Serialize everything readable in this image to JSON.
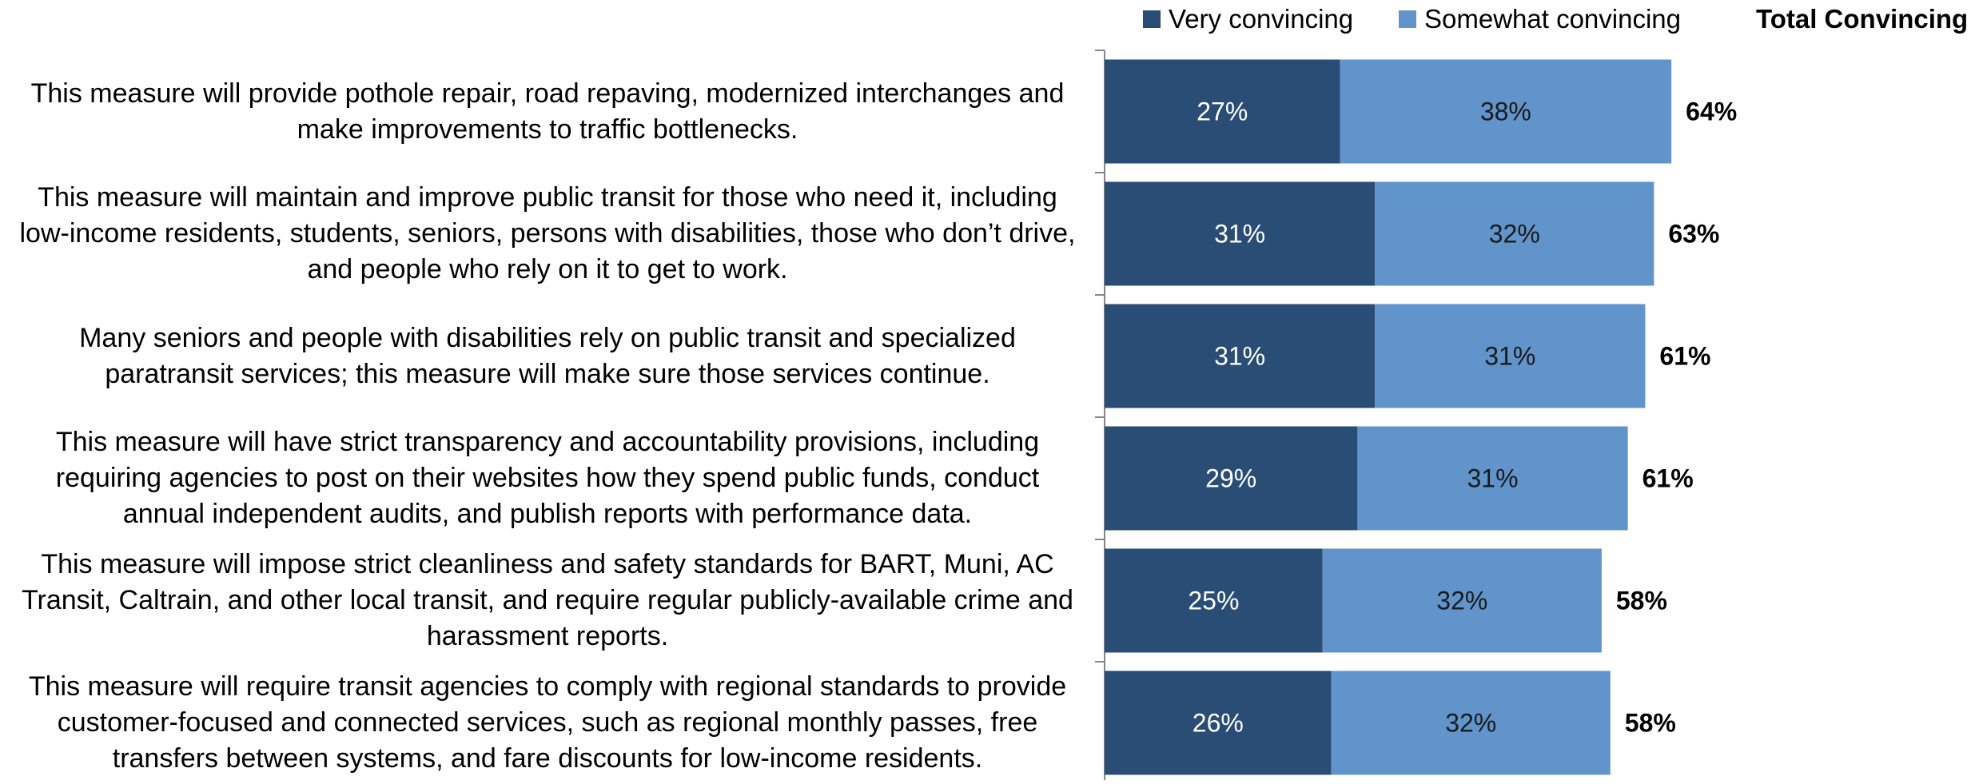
{
  "chart_data": {
    "type": "bar",
    "orientation": "horizontal",
    "stacked": true,
    "legend": {
      "placement": "top",
      "items": [
        {
          "name": "Very convincing",
          "color": "#2a4d75"
        },
        {
          "name": "Somewhat convincing",
          "color": "#6194ca"
        }
      ]
    },
    "total_header": "Total Convincing",
    "categories": [
      [
        "This measure will provide pothole repair, road repaving, modernized interchanges and",
        "make improvements to traffic bottlenecks."
      ],
      [
        "This measure will maintain and improve public transit for those who need it, including",
        "low-income residents, students, seniors, persons with disabilities, those who don’t drive,",
        "and people who rely on it to get to work."
      ],
      [
        "Many seniors and people with disabilities rely on public transit and specialized",
        "paratransit services; this measure will make sure those services continue."
      ],
      [
        "This measure will have strict transparency and accountability provisions, including",
        "requiring agencies to post on their websites how they spend public funds, conduct",
        "annual independent audits, and publish reports with performance data."
      ],
      [
        "This measure will impose strict cleanliness and safety standards for BART, Muni, AC",
        "Transit, Caltrain, and other local transit, and require regular publicly-available crime and",
        "harassment reports."
      ],
      [
        "This measure will require transit agencies to comply with regional standards to provide",
        "customer-focused and connected services, such as regional monthly passes, free",
        "transfers between systems, and fare discounts for low-income residents."
      ]
    ],
    "series": [
      {
        "name": "Very convincing",
        "values": [
          27,
          31,
          31,
          29,
          25,
          26
        ],
        "labels": [
          "27%",
          "31%",
          "31%",
          "29%",
          "25%",
          "26%"
        ]
      },
      {
        "name": "Somewhat convincing",
        "values": [
          38,
          32,
          31,
          31,
          32,
          32
        ],
        "labels": [
          "38%",
          "32%",
          "31%",
          "31%",
          "32%",
          "32%"
        ]
      }
    ],
    "totals": [
      "64%",
      "63%",
      "61%",
      "61%",
      "58%",
      "58%"
    ],
    "xlim": [
      0,
      100
    ],
    "grid": false
  }
}
